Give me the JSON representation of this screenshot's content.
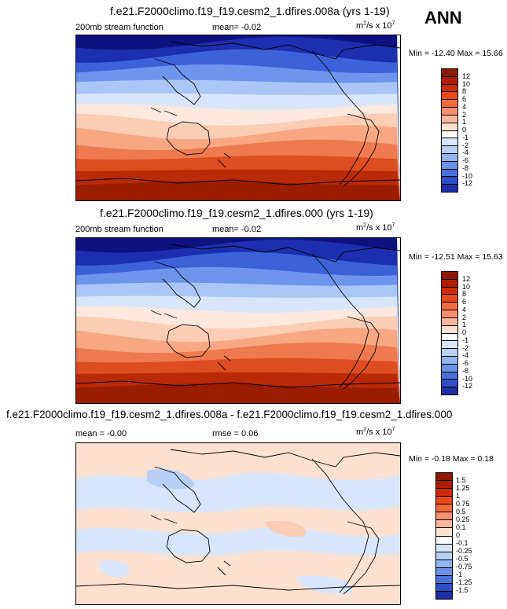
{
  "season": "ANN",
  "panels": [
    {
      "title": "f.e21.F2000climo.f19_f19.cesm2_1.dfires.008a (yrs 1-19)",
      "variable": "200mb stream function",
      "stat_left": "mean=  -0.02",
      "units_base": "m",
      "units_mid": "/s x 10",
      "units_sup1": "2",
      "units_sup2": "7",
      "minmax": "Min = -12.40 Max =  15.66",
      "colorbar_labels": [
        "12",
        "10",
        "8",
        "6",
        "4",
        "2",
        "1",
        "0",
        "-1",
        "-2",
        "-4",
        "-6",
        "-8",
        "-10",
        "-12"
      ],
      "colors": [
        "#8b1a00",
        "#b01e00",
        "#cf2a04",
        "#e8481a",
        "#f26b3d",
        "#f79070",
        "#fbb79d",
        "#fde0d0",
        "#ffffff",
        "#d7e6fb",
        "#b8d0f6",
        "#92b4ef",
        "#6c93e6",
        "#4a71d9",
        "#2d4fc6",
        "#1e2fa3"
      ],
      "map_colors": [
        "#0d1280",
        "#1c2fb0",
        "#3b62d9",
        "#6e95ec",
        "#a9c6f6",
        "#d8e6fb",
        "#fde8dd",
        "#fbcdb5",
        "#f8a783",
        "#ef7a4f",
        "#dc4d21",
        "#bb2a06",
        "#9a1d00"
      ]
    },
    {
      "title": "f.e21.F2000climo.f19_f19.cesm2_1.dfires.000 (yrs 1-19)",
      "variable": "200mb stream function",
      "stat_left": "mean=  -0.02",
      "units_base": "m",
      "units_mid": "/s x 10",
      "units_sup1": "2",
      "units_sup2": "7",
      "minmax": "Min = -12.51 Max =  15.63",
      "colorbar_labels": [
        "12",
        "10",
        "8",
        "6",
        "4",
        "2",
        "1",
        "0",
        "-1",
        "-2",
        "-4",
        "-6",
        "-8",
        "-10",
        "-12"
      ],
      "colors": [
        "#8b1a00",
        "#b01e00",
        "#cf2a04",
        "#e8481a",
        "#f26b3d",
        "#f79070",
        "#fbb79d",
        "#fde0d0",
        "#ffffff",
        "#d7e6fb",
        "#b8d0f6",
        "#92b4ef",
        "#6c93e6",
        "#4a71d9",
        "#2d4fc6",
        "#1e2fa3"
      ],
      "map_colors": [
        "#0d1280",
        "#1c2fb0",
        "#3b62d9",
        "#6e95ec",
        "#a9c6f6",
        "#d8e6fb",
        "#fde8dd",
        "#fbcdb5",
        "#f8a783",
        "#ef7a4f",
        "#dc4d21",
        "#bb2a06",
        "#9a1d00"
      ]
    },
    {
      "title": "f.e21.F2000climo.f19_f19.cesm2_1.dfires.008a - f.e21.F2000climo.f19_f19.cesm2_1.dfires.000",
      "variable": "mean =  -0.00",
      "stat_left": "rmse =  0.06",
      "units_base": "m",
      "units_mid": "/s x 10",
      "units_sup1": "2",
      "units_sup2": "7",
      "minmax": "Min =  -0.18 Max =  0.18",
      "colorbar_labels": [
        "1.5",
        "1.25",
        "1",
        "0.75",
        "0.5",
        "0.25",
        "0.1",
        "0",
        "-0.1",
        "-0.25",
        "-0.5",
        "-0.75",
        "-1",
        "-1.25",
        "-1.5"
      ],
      "colors": [
        "#8b1a00",
        "#b01e00",
        "#cf2a04",
        "#e8481a",
        "#f26b3d",
        "#f79070",
        "#fbb79d",
        "#fde0d0",
        "#ffffff",
        "#d7e6fb",
        "#b8d0f6",
        "#92b4ef",
        "#6c93e6",
        "#4a71d9",
        "#2d4fc6",
        "#1e2fa3"
      ]
    }
  ]
}
